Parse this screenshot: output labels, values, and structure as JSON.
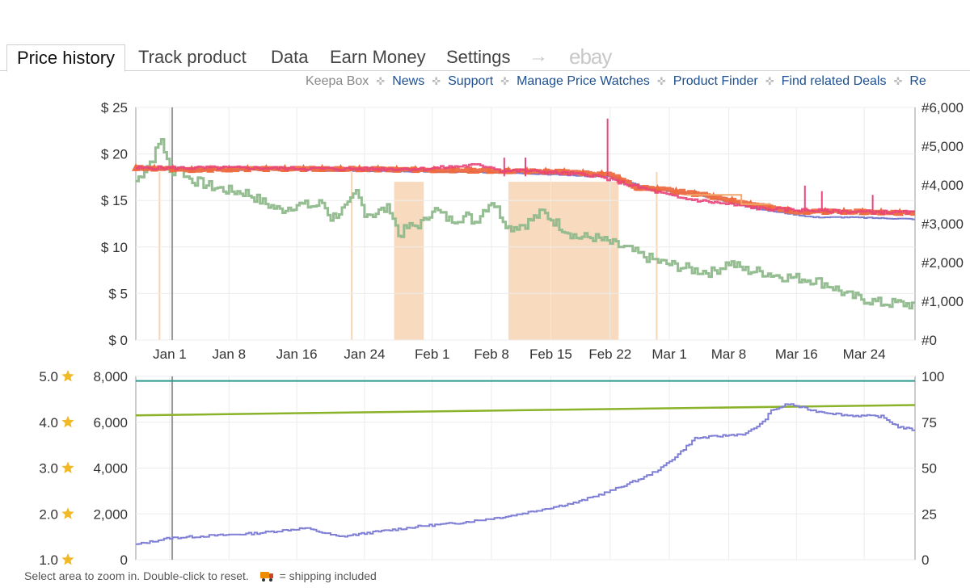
{
  "tabs": [
    {
      "label": "Price history",
      "active": true
    },
    {
      "label": "Track product"
    },
    {
      "label": "Data"
    },
    {
      "label": "Earn Money"
    },
    {
      "label": "Settings"
    }
  ],
  "tab_arrow": "→",
  "ebay_label": "ebay",
  "sublinks": {
    "keepa_box": "Keepa Box",
    "items": [
      "News",
      "Support",
      "Manage Price Watches",
      "Product Finder",
      "Find related Deals",
      "Re"
    ]
  },
  "footer": {
    "hint": "Select area to zoom in. Double-click to reset.",
    "shipping": "= shipping included"
  },
  "colors": {
    "amazon": "#f2a66a",
    "new": "#e8457a",
    "used": "#7d7dd0",
    "sales_rank": "#8fb98c",
    "buybox": "#ee6b40",
    "rating": "#2a9a8f",
    "review_count": "#8bb32a",
    "reviews": "#7f7fd6",
    "stock_out": "#f7d4b3",
    "accent_link": "#1d4f91"
  },
  "chart_data": [
    {
      "type": "line",
      "x_ticks": [
        "Jan 1",
        "Jan 8",
        "Jan 16",
        "Jan 24",
        "Feb 1",
        "Feb 8",
        "Feb 15",
        "Feb 22",
        "Mar 1",
        "Mar 8",
        "Mar 16",
        "Mar 24"
      ],
      "y_left_ticks": [
        "$ 25",
        "$ 20",
        "$ 15",
        "$ 10",
        "$ 5",
        "$ 0"
      ],
      "y_right_ticks": [
        "#6,000",
        "#5,000",
        "#4,000",
        "#3,000",
        "#2,000",
        "#1,000",
        "#0"
      ],
      "ylim": [
        0,
        25
      ],
      "y2lim": [
        0,
        6000
      ],
      "grid": true,
      "out_of_stock_day_ranges": [
        [
          26.5,
          30
        ],
        [
          40,
          53
        ]
      ],
      "series": [
        {
          "key": "buybox",
          "days": [
            -4,
            0,
            2,
            10,
            20,
            30,
            38,
            46,
            52,
            55,
            58,
            63,
            66,
            69,
            74,
            80,
            86,
            88
          ],
          "values": [
            18.5,
            18.4,
            18.3,
            18.4,
            18.4,
            18.3,
            18.2,
            18.1,
            17.8,
            16.4,
            16.2,
            15.6,
            15.1,
            14.5,
            13.8,
            13.8,
            13.7,
            13.6
          ]
        },
        {
          "key": "used",
          "days": [
            -4,
            0,
            10,
            20,
            30,
            40,
            50,
            52,
            56,
            63,
            70,
            76,
            80,
            88
          ],
          "values": [
            18.3,
            18.3,
            18.3,
            18.2,
            18.1,
            18.0,
            17.6,
            17.6,
            16.4,
            15.5,
            14.0,
            13.2,
            13.2,
            13.0
          ]
        },
        {
          "key": "new",
          "days": [
            -4,
            0,
            10,
            20,
            30,
            36,
            38,
            39,
            42,
            50,
            60,
            70,
            80,
            88
          ],
          "values": [
            18.5,
            18.5,
            18.5,
            18.4,
            18.4,
            18.8,
            18.6,
            18.2,
            18.2,
            17.7,
            15.3,
            14.1,
            13.8,
            13.7
          ]
        },
        {
          "key": "sales_rank",
          "days": [
            -4,
            -2,
            -1,
            0,
            1,
            2,
            3,
            5,
            7,
            9,
            11,
            13,
            15,
            17,
            18,
            19,
            21,
            22,
            23,
            24,
            25,
            26,
            27,
            28,
            29,
            30,
            31,
            33,
            35,
            36,
            37,
            38,
            40,
            42,
            44,
            46,
            48,
            50,
            52,
            54,
            56,
            58,
            60,
            62,
            64,
            66,
            68,
            70,
            72,
            74,
            76,
            78,
            80,
            82,
            84,
            86,
            88
          ],
          "values": [
            4100,
            4700,
            5200,
            4300,
            4500,
            4200,
            4100,
            3950,
            3850,
            3800,
            3550,
            3350,
            3500,
            3450,
            3550,
            3150,
            3450,
            3800,
            3300,
            3250,
            3350,
            3400,
            2700,
            2900,
            2950,
            3050,
            3400,
            3100,
            3200,
            3050,
            3350,
            3600,
            2900,
            3000,
            3300,
            2950,
            2650,
            2650,
            2500,
            2350,
            2150,
            2000,
            1900,
            1800,
            1750,
            2000,
            1800,
            1750,
            1650,
            1600,
            1550,
            1400,
            1150,
            1050,
            950,
            950,
            900
          ]
        }
      ]
    },
    {
      "type": "line",
      "x_ticks": [
        "Jan 1",
        "Jan 8",
        "Jan 16",
        "Jan 24",
        "Feb 1",
        "Feb 8",
        "Feb 15",
        "Feb 22",
        "Mar 1",
        "Mar 8",
        "Mar 16",
        "Mar 24"
      ],
      "y_left_ticks": [
        "8,000",
        "6,000",
        "4,000",
        "2,000",
        "0"
      ],
      "y_stars_ticks": [
        "5.0",
        "4.0",
        "3.0",
        "2.0",
        "1.0"
      ],
      "y_right_ticks": [
        "100",
        "75",
        "50",
        "25",
        "0"
      ],
      "ylim": [
        0,
        8000
      ],
      "y2lim": [
        0,
        100
      ],
      "grid": true,
      "series": [
        {
          "key": "rating",
          "days": [
            -4,
            88
          ],
          "values": [
            4.9,
            4.9
          ],
          "axis": "stars"
        },
        {
          "key": "review_count",
          "days": [
            -4,
            88
          ],
          "values": [
            6300,
            6750
          ]
        },
        {
          "key": "reviews",
          "days": [
            -4,
            0,
            10,
            16,
            20,
            24,
            30,
            34,
            40,
            44,
            48,
            52,
            56,
            58,
            60,
            62,
            65,
            68,
            70,
            71,
            73,
            76,
            80,
            84,
            86,
            88
          ],
          "values": [
            660,
            950,
            1150,
            1380,
            1000,
            1200,
            1480,
            1600,
            1900,
            2200,
            2500,
            3000,
            3600,
            4000,
            4600,
            5300,
            5400,
            5500,
            6000,
            6500,
            6800,
            6500,
            6300,
            6250,
            5800,
            5650
          ]
        }
      ]
    }
  ]
}
